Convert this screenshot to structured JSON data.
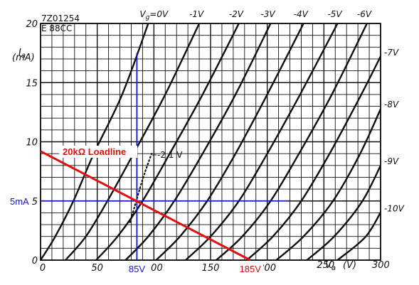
{
  "chart_data": {
    "type": "line",
    "tube_code": "7Z01254",
    "tube_type": "E 88CC",
    "y_label": "I",
    "y_label_sub": "a",
    "y_unit": "(mA)",
    "x_label": "V",
    "x_label_sub": "a",
    "x_unit": "(V)",
    "xlim": [
      0,
      300
    ],
    "ylim": [
      0,
      20
    ],
    "grid": true,
    "x_ticks": [
      {
        "value": 0,
        "label": "0"
      },
      {
        "value": 50,
        "label": "50"
      },
      {
        "value": 100,
        "label": "100"
      },
      {
        "value": 150,
        "label": "150"
      },
      {
        "value": 200,
        "label": "200"
      },
      {
        "value": 250,
        "label": "250"
      },
      {
        "value": 300,
        "label": "300"
      }
    ],
    "y_ticks": [
      {
        "value": 0,
        "label": "0"
      },
      {
        "value": 5,
        "label": "5"
      },
      {
        "value": 10,
        "label": "10"
      },
      {
        "value": 15,
        "label": "15"
      },
      {
        "value": 20,
        "label": "20"
      }
    ],
    "series": [
      {
        "name": "Vg=0V",
        "label": "V",
        "label_sub": "g",
        "label_rest": "=0V",
        "values": [
          [
            0,
            0
          ],
          [
            13,
            2
          ],
          [
            29,
            5
          ],
          [
            47,
            9
          ],
          [
            72,
            14
          ],
          [
            95,
            20
          ]
        ]
      },
      {
        "name": "-1V",
        "label": "-1V",
        "values": [
          [
            22,
            0
          ],
          [
            40,
            2
          ],
          [
            59,
            5
          ],
          [
            82,
            9
          ],
          [
            110,
            14
          ],
          [
            140,
            20
          ]
        ]
      },
      {
        "name": "-2V",
        "label": "-2V",
        "values": [
          [
            49,
            0
          ],
          [
            68,
            2
          ],
          [
            90,
            5
          ],
          [
            114,
            9
          ],
          [
            143,
            14
          ],
          [
            175,
            20
          ]
        ]
      },
      {
        "name": "-3V",
        "label": "-3V",
        "values": [
          [
            75,
            0
          ],
          [
            95,
            2
          ],
          [
            118,
            5
          ],
          [
            143,
            9
          ],
          [
            172,
            14
          ],
          [
            203,
            20
          ]
        ]
      },
      {
        "name": "-4V",
        "label": "-4V",
        "values": [
          [
            102,
            0
          ],
          [
            123,
            2
          ],
          [
            147,
            5
          ],
          [
            172,
            9
          ],
          [
            200,
            14
          ],
          [
            232,
            20
          ]
        ]
      },
      {
        "name": "-5V",
        "label": "-5V",
        "values": [
          [
            128,
            0
          ],
          [
            150,
            2
          ],
          [
            175,
            5
          ],
          [
            200,
            9
          ],
          [
            229,
            14
          ],
          [
            262,
            20
          ]
        ]
      },
      {
        "name": "-6V",
        "label": "-6V",
        "values": [
          [
            155,
            0
          ],
          [
            178,
            2
          ],
          [
            203,
            5
          ],
          [
            228,
            9
          ],
          [
            257,
            14
          ],
          [
            288,
            20
          ]
        ]
      },
      {
        "name": "-7V",
        "label": "-7V",
        "values": [
          [
            182,
            0
          ],
          [
            205,
            2
          ],
          [
            230,
            5
          ],
          [
            255,
            9
          ],
          [
            283,
            14
          ],
          [
            302,
            17.6
          ]
        ]
      },
      {
        "name": "-8V",
        "label": "-8V",
        "values": [
          [
            208,
            0
          ],
          [
            232,
            2
          ],
          [
            258,
            5
          ],
          [
            282,
            9
          ],
          [
            302,
            13.2
          ]
        ]
      },
      {
        "name": "-9V",
        "label": "-9V",
        "values": [
          [
            235,
            0
          ],
          [
            259,
            2
          ],
          [
            284,
            5
          ],
          [
            302,
            8.4
          ]
        ]
      },
      {
        "name": "-10V",
        "label": "-10V",
        "values": [
          [
            262,
            0
          ],
          [
            287,
            2
          ],
          [
            302,
            4.4
          ]
        ]
      }
    ],
    "annotations": {
      "loadline": {
        "label": "20kΩ Loadline",
        "color": "#e01010",
        "points": [
          [
            0,
            9.2
          ],
          [
            185,
            0
          ]
        ]
      },
      "grid_voltage": {
        "label": "-2.1 V",
        "points": [
          [
            79,
            3.2
          ],
          [
            90,
            6.8
          ],
          [
            98,
            9
          ]
        ]
      },
      "quiescent_vertical": {
        "label": "85V",
        "x": 85,
        "y_range": [
          0,
          17.5
        ],
        "color": "#1616c8"
      },
      "quiescent_horizontal": {
        "label": "5mA",
        "y": 5,
        "x_range": [
          0,
          218
        ],
        "color": "#1616c8"
      },
      "x_intercept": {
        "label": "185V",
        "x": 185,
        "color": "#cc1010"
      }
    }
  }
}
